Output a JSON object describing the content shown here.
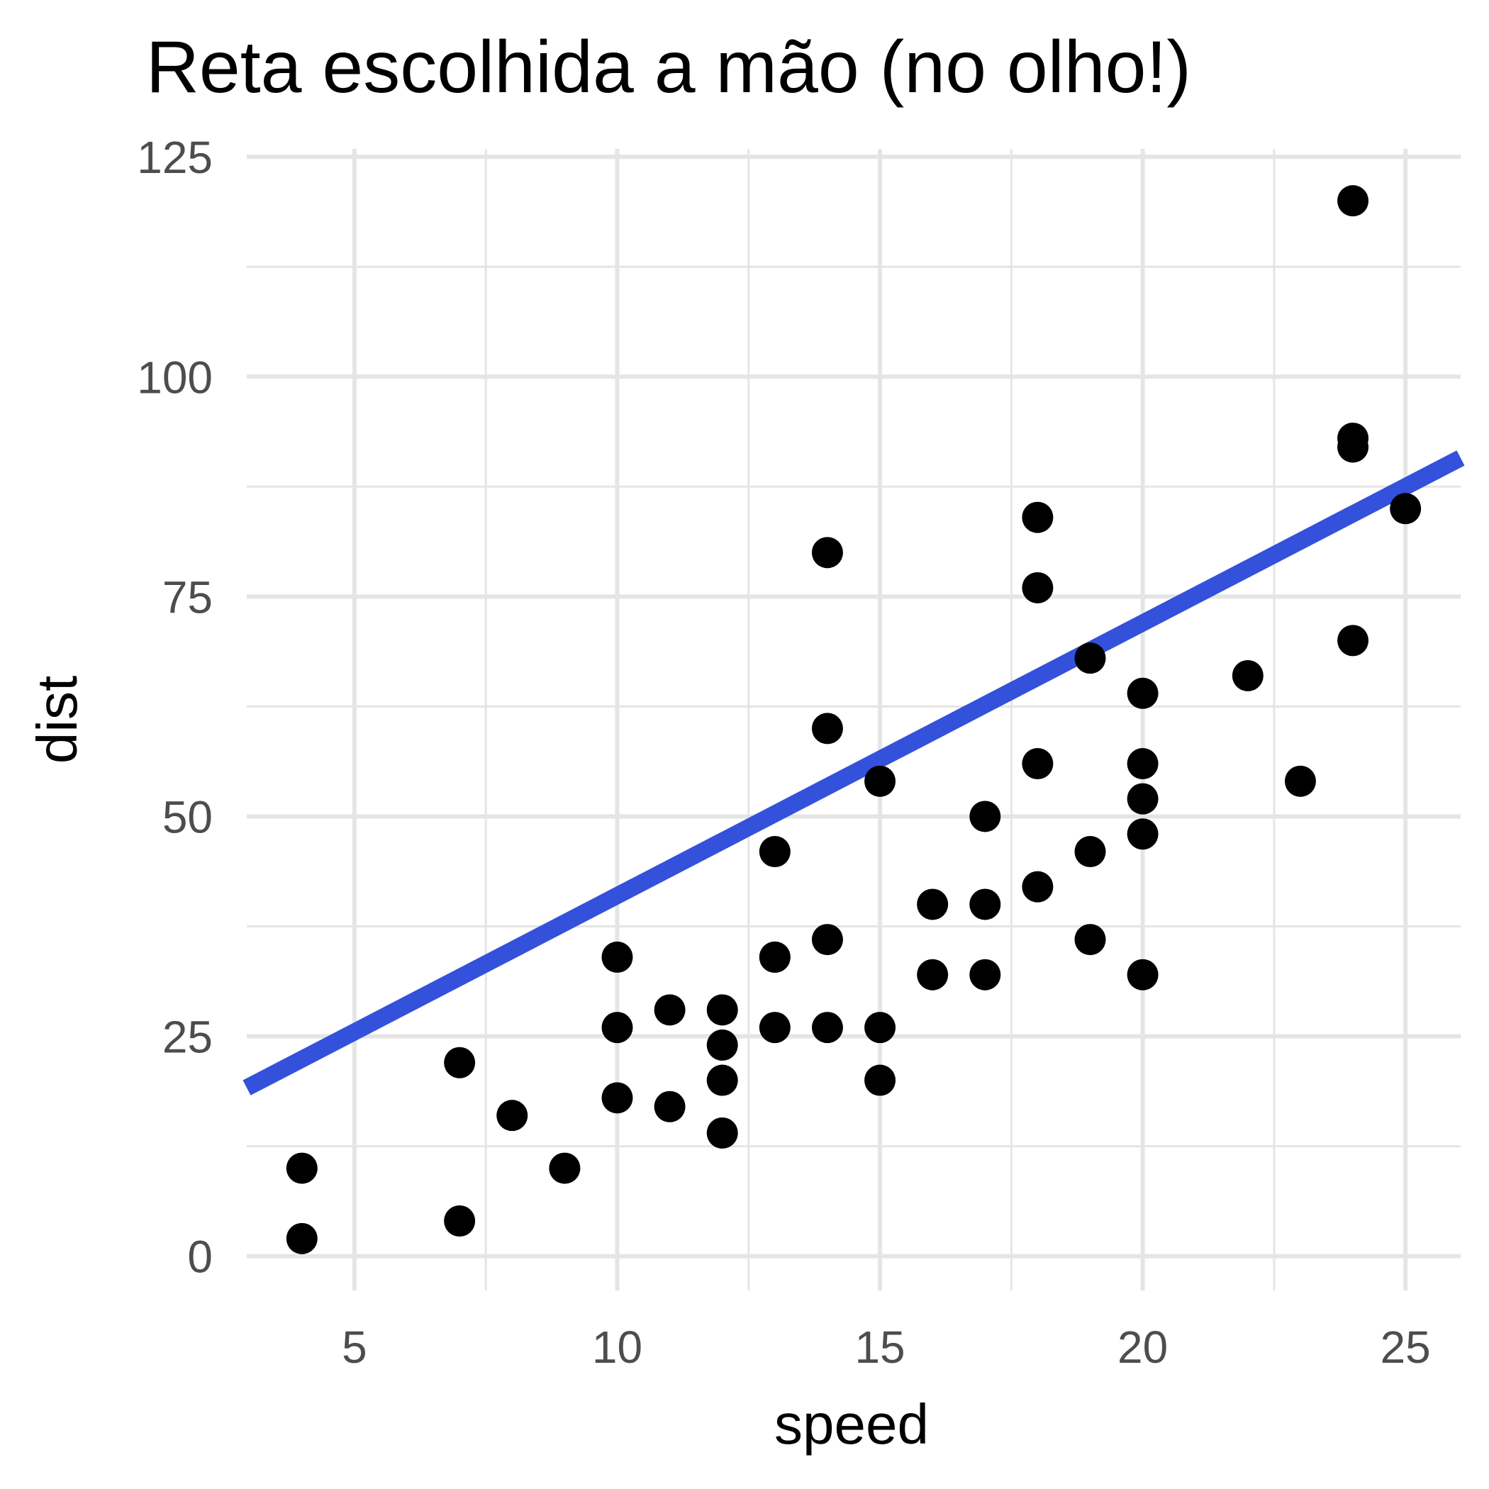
{
  "chart_data": {
    "type": "scatter",
    "title": "Reta escolhida a mão (no olho!)",
    "xlabel": "speed",
    "ylabel": "dist",
    "xlim": [
      2.95,
      26.05
    ],
    "ylim": [
      -3.9,
      125.9
    ],
    "x_ticks": [
      5,
      10,
      15,
      20,
      25
    ],
    "x_tick_labels": [
      "5",
      "10",
      "15",
      "20",
      "25"
    ],
    "y_ticks": [
      0,
      25,
      50,
      75,
      100,
      125
    ],
    "y_tick_labels": [
      "0",
      "25",
      "50",
      "75",
      "100",
      "125"
    ],
    "x_minor_ticks": [
      7.5,
      12.5,
      17.5,
      22.5
    ],
    "y_minor_ticks": [
      12.5,
      37.5,
      62.5,
      87.5,
      112.5
    ],
    "grid": true,
    "point_color": "#000000",
    "line_color": "#3451DB",
    "background": "#ffffff",
    "grid_color": "#e5e5e5",
    "points": [
      {
        "x": 4,
        "y": 2
      },
      {
        "x": 4,
        "y": 10
      },
      {
        "x": 7,
        "y": 4
      },
      {
        "x": 7,
        "y": 22
      },
      {
        "x": 8,
        "y": 16
      },
      {
        "x": 9,
        "y": 10
      },
      {
        "x": 10,
        "y": 18
      },
      {
        "x": 10,
        "y": 26
      },
      {
        "x": 10,
        "y": 34
      },
      {
        "x": 11,
        "y": 17
      },
      {
        "x": 11,
        "y": 28
      },
      {
        "x": 12,
        "y": 14
      },
      {
        "x": 12,
        "y": 20
      },
      {
        "x": 12,
        "y": 24
      },
      {
        "x": 12,
        "y": 28
      },
      {
        "x": 13,
        "y": 26
      },
      {
        "x": 13,
        "y": 34
      },
      {
        "x": 13,
        "y": 34
      },
      {
        "x": 13,
        "y": 46
      },
      {
        "x": 14,
        "y": 26
      },
      {
        "x": 14,
        "y": 36
      },
      {
        "x": 14,
        "y": 60
      },
      {
        "x": 14,
        "y": 80
      },
      {
        "x": 15,
        "y": 20
      },
      {
        "x": 15,
        "y": 26
      },
      {
        "x": 15,
        "y": 54
      },
      {
        "x": 16,
        "y": 32
      },
      {
        "x": 16,
        "y": 40
      },
      {
        "x": 17,
        "y": 32
      },
      {
        "x": 17,
        "y": 40
      },
      {
        "x": 17,
        "y": 50
      },
      {
        "x": 18,
        "y": 42
      },
      {
        "x": 18,
        "y": 56
      },
      {
        "x": 18,
        "y": 76
      },
      {
        "x": 18,
        "y": 84
      },
      {
        "x": 19,
        "y": 36
      },
      {
        "x": 19,
        "y": 46
      },
      {
        "x": 19,
        "y": 68
      },
      {
        "x": 20,
        "y": 32
      },
      {
        "x": 20,
        "y": 48
      },
      {
        "x": 20,
        "y": 52
      },
      {
        "x": 20,
        "y": 56
      },
      {
        "x": 20,
        "y": 64
      },
      {
        "x": 22,
        "y": 66
      },
      {
        "x": 23,
        "y": 54
      },
      {
        "x": 24,
        "y": 70
      },
      {
        "x": 24,
        "y": 92
      },
      {
        "x": 24,
        "y": 93
      },
      {
        "x": 24,
        "y": 120
      },
      {
        "x": 25,
        "y": 85
      }
    ],
    "line": {
      "intercept": 10,
      "slope": 3.1
    }
  }
}
